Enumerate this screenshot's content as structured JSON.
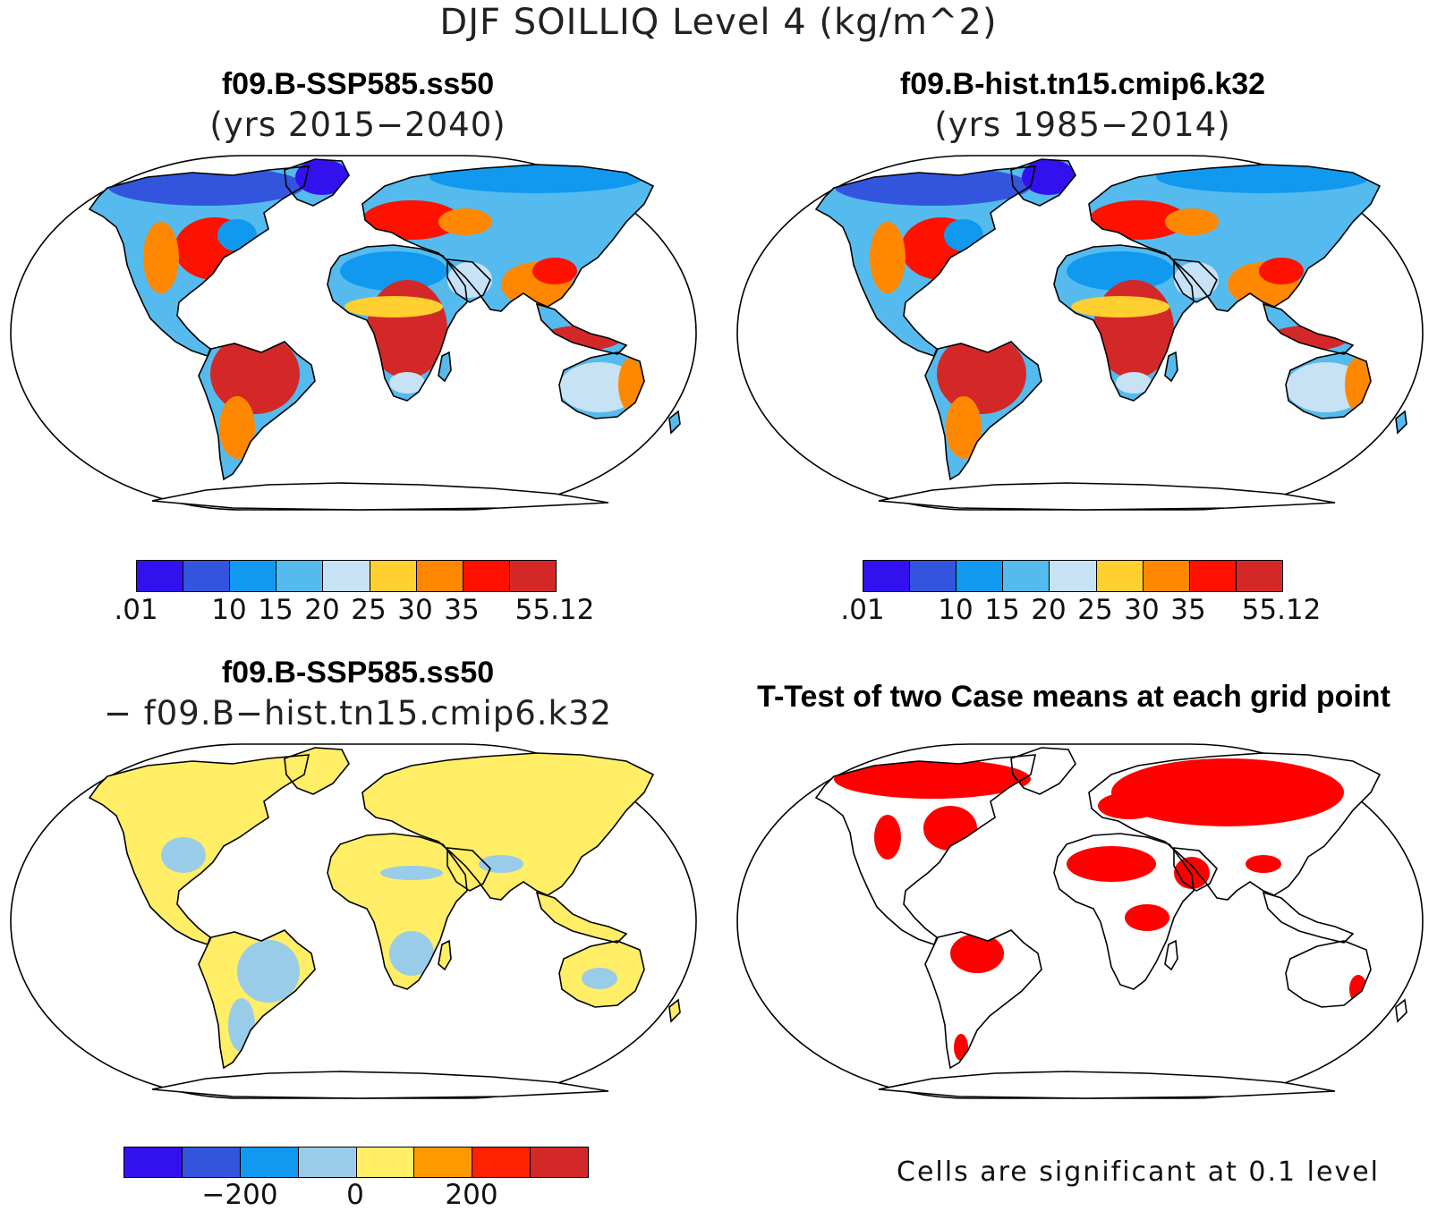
{
  "figure_title": "DJF SOILLIQ Level 4 (kg/m^2)",
  "panels": [
    {
      "title": "f09.B-SSP585.ss50",
      "subtitle": "(yrs 2015−2040)"
    },
    {
      "title": "f09.B-hist.tn15.cmip6.k32",
      "subtitle": "(yrs 1985−2014)"
    },
    {
      "title": "f09.B-SSP585.ss50",
      "subtitle": "− f09.B−hist.tn15.cmip6.k32"
    },
    {
      "title": "T-Test of two Case means at each grid point",
      "subtitle": ""
    }
  ],
  "colorbar_top": {
    "colors": [
      "#3311ee",
      "#3355dd",
      "#1199f0",
      "#55bbee",
      "#c6e2f4",
      "#ffd030",
      "#ff8800",
      "#ff1100",
      "#d42828"
    ],
    "labels": [
      ".01",
      "10",
      "15",
      "20",
      "25",
      "30",
      "35",
      "55.12"
    ]
  },
  "colorbar_diff": {
    "colors": [
      "#3311ee",
      "#3355dd",
      "#1199f0",
      "#99cce8",
      "#ffee66",
      "#ff9900",
      "#ff2200",
      "#d42828"
    ],
    "labels": [
      "−200",
      "0",
      "200"
    ]
  },
  "significance_note": "Cells are significant at 0.1 level",
  "map_colors": {
    "land_outline": "#000000",
    "abs_fields": [
      "#55bbee",
      "#ff1100",
      "#d42828",
      "#ff8800",
      "#3355dd"
    ],
    "diff_fields": [
      "#ffee66",
      "#99cce8"
    ],
    "significant": "#ff0000"
  }
}
